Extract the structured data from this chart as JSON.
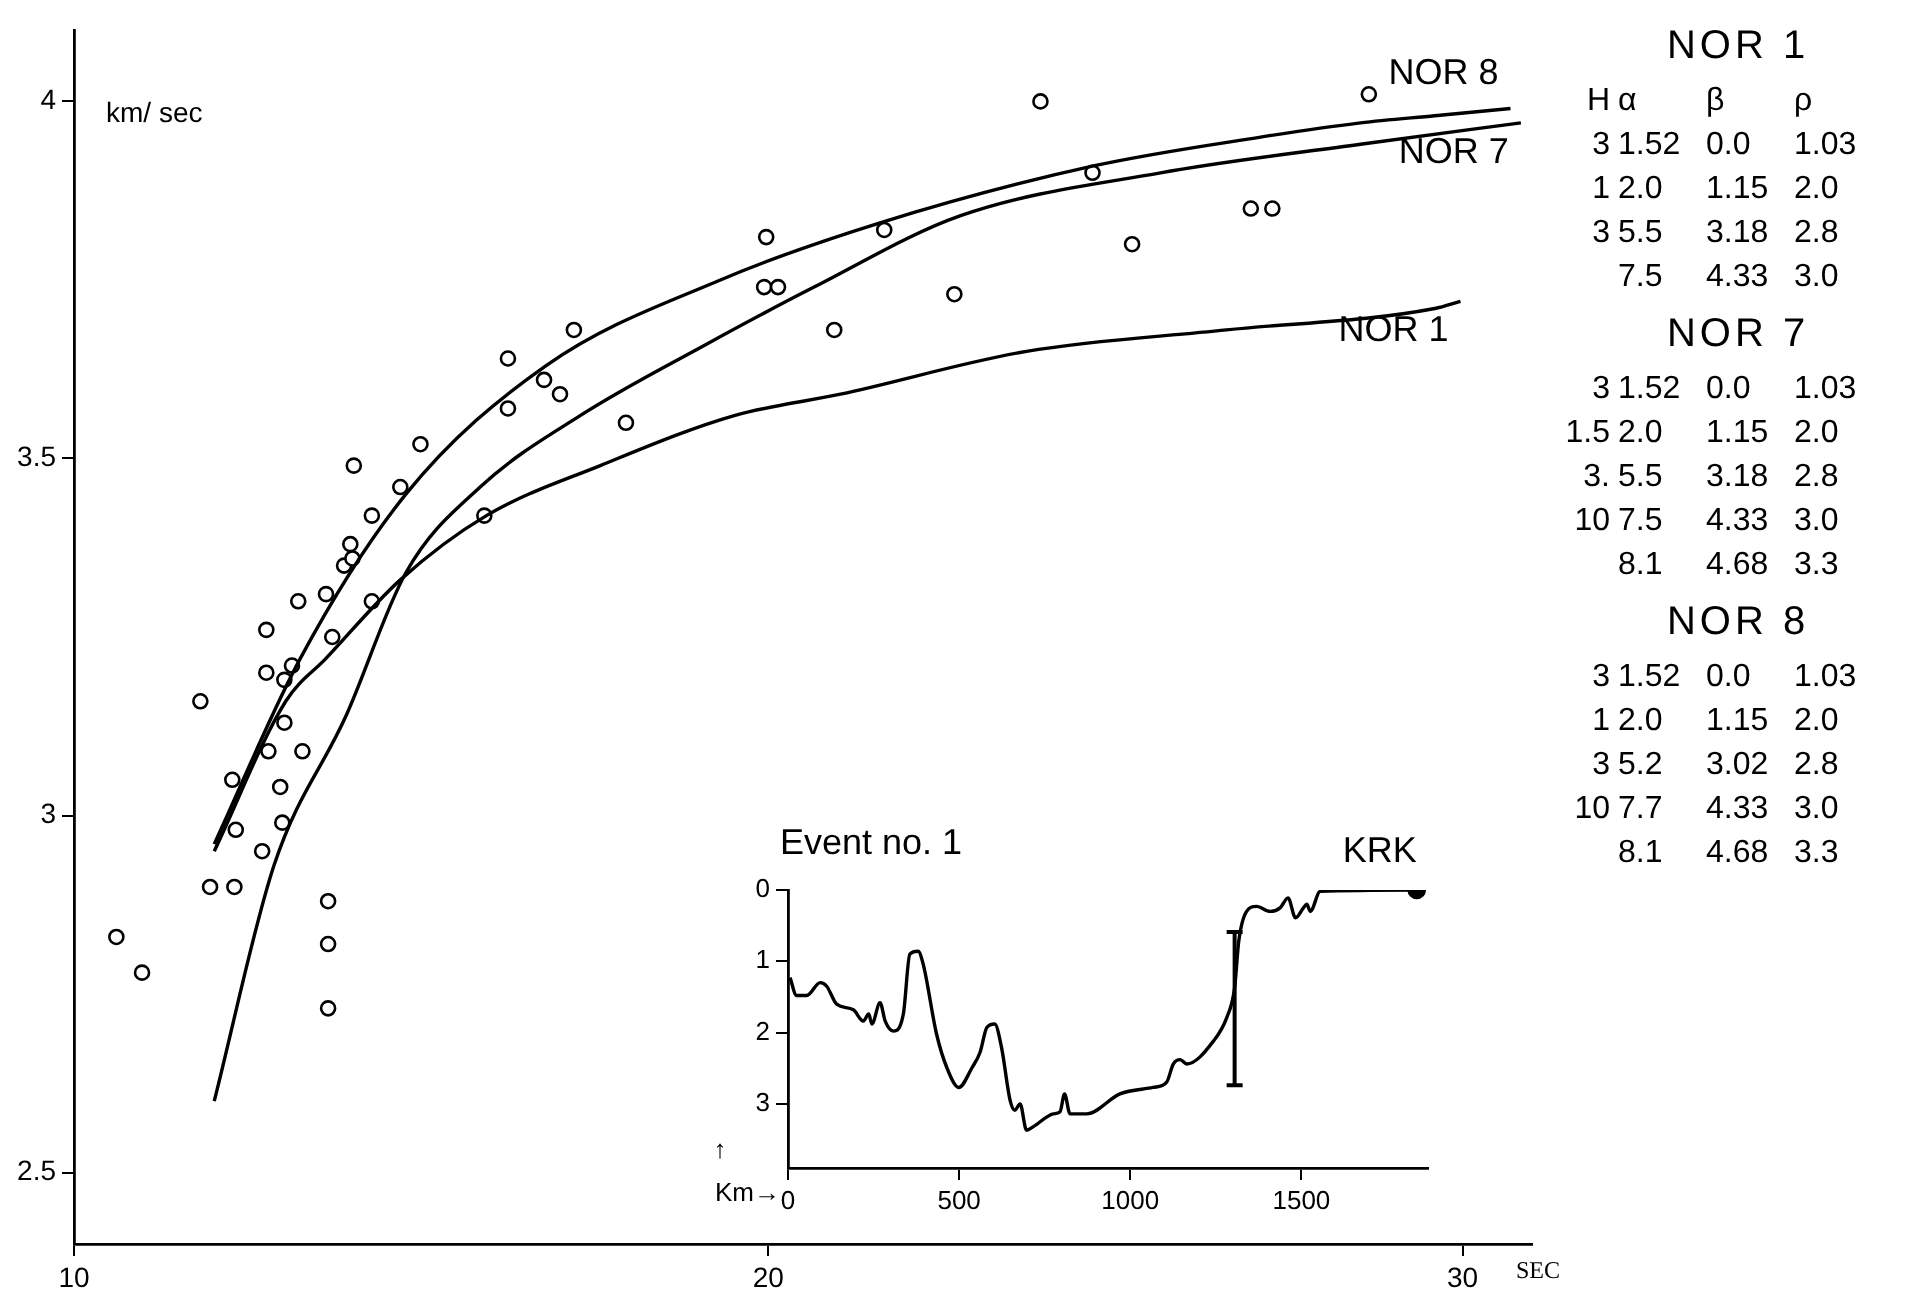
{
  "chart_data": [
    {
      "type": "line",
      "xlabel": "SEC",
      "ylabel": "km/ sec",
      "xlim": [
        10,
        31
      ],
      "ylim": [
        2.4,
        4.1
      ],
      "xticks": [
        10,
        20,
        30
      ],
      "yticks": [
        2.5,
        3,
        3.5,
        4
      ],
      "grid": false,
      "legend": false,
      "series": [
        {
          "name": "NOR 8",
          "type": "line",
          "color": "#000000",
          "x": [
            12.02,
            13.26,
            14.78,
            16.8,
            19.31,
            21.61,
            24.7,
            27.09,
            28.53,
            29.6,
            30.69
          ],
          "values": [
            2.96,
            3.22,
            3.45,
            3.63,
            3.75,
            3.83,
            3.91,
            3.95,
            3.97,
            3.98,
            3.99
          ]
        },
        {
          "name": "NOR 7",
          "type": "line",
          "color": "#000000",
          "x": [
            12.02,
            12.88,
            13.92,
            14.78,
            15.85,
            17.29,
            19.11,
            20.66,
            22.77,
            25.65,
            28.53,
            30.84
          ],
          "values": [
            2.6,
            2.93,
            3.14,
            3.34,
            3.46,
            3.56,
            3.66,
            3.74,
            3.84,
            3.9,
            3.94,
            3.97
          ]
        },
        {
          "name": "NOR 1",
          "type": "line",
          "color": "#000000",
          "x": [
            12.02,
            13.05,
            13.63,
            14.7,
            15.94,
            17.58,
            19.51,
            21.04,
            23.72,
            26.6,
            29.6,
            29.97
          ],
          "values": [
            2.95,
            3.16,
            3.22,
            3.33,
            3.42,
            3.49,
            3.56,
            3.59,
            3.65,
            3.68,
            3.71,
            3.72
          ]
        },
        {
          "type": "scatter",
          "marker": "circle",
          "color": "#000000",
          "x": [
            10.61,
            10.98,
            11.82,
            11.96,
            12.31,
            12.28,
            12.33,
            12.71,
            12.8,
            12.77,
            12.77,
            12.97,
            13.0,
            13.03,
            13.03,
            13.14,
            13.23,
            13.29,
            13.66,
            13.66,
            13.66,
            13.63,
            13.72,
            13.89,
            13.98,
            14.01,
            14.29,
            14.29,
            14.03,
            14.7,
            14.99,
            15.91,
            16.25,
            16.25,
            16.77,
            17.0,
            17.2,
            17.95,
            19.94,
            20.14,
            19.97,
            20.95,
            21.67,
            22.68,
            23.92,
            24.67,
            25.24,
            26.95,
            27.26,
            28.65
          ],
          "values": [
            2.83,
            2.78,
            3.16,
            2.9,
            2.9,
            3.05,
            2.98,
            2.95,
            3.09,
            3.2,
            3.26,
            3.04,
            2.99,
            3.13,
            3.19,
            3.21,
            3.3,
            3.09,
            2.88,
            2.82,
            2.73,
            3.31,
            3.25,
            3.35,
            3.38,
            3.36,
            3.3,
            3.42,
            3.49,
            3.46,
            3.52,
            3.42,
            3.57,
            3.64,
            3.61,
            3.59,
            3.68,
            3.55,
            3.74,
            3.74,
            3.81,
            3.68,
            3.82,
            3.73,
            4.0,
            3.9,
            3.8,
            3.85,
            3.85,
            4.01
          ]
        }
      ]
    },
    {
      "type": "line",
      "title": "Event no. 1",
      "xlabel": "Km→",
      "ylabel": "↑",
      "xlim": [
        0,
        1870
      ],
      "ylim": [
        3.9,
        0
      ],
      "xticks": [
        0,
        500,
        1000,
        1500
      ],
      "yticks": [
        0,
        1,
        2,
        3
      ],
      "grid": false,
      "legend": false,
      "annotations": [
        {
          "text": "KRK",
          "x": 1837,
          "y": 0
        }
      ],
      "series": [
        {
          "type": "line",
          "color": "#000000",
          "x": [
            6,
            25,
            55,
            94,
            113,
            142,
            191,
            220,
            236,
            245,
            269,
            284,
            308,
            337,
            356,
            380,
            395,
            434,
            464,
            499,
            538,
            561,
            581,
            604,
            624,
            649,
            663,
            678,
            697,
            717,
            775,
            795,
            808,
            824,
            873,
            970,
            1067,
            1106,
            1126,
            1146,
            1165,
            1243,
            1282,
            1305,
            1317,
            1340,
            1369,
            1409,
            1438,
            1461,
            1483,
            1506,
            1516,
            1526,
            1555,
            1837
          ],
          "values": [
            1.23,
            1.48,
            1.48,
            1.3,
            1.35,
            1.6,
            1.68,
            1.84,
            1.74,
            1.88,
            1.58,
            1.84,
            1.98,
            1.74,
            0.9,
            0.86,
            1.04,
            2.02,
            2.49,
            2.77,
            2.49,
            2.28,
            1.93,
            1.88,
            2.21,
            2.95,
            3.09,
            3.0,
            3.37,
            3.32,
            3.14,
            3.11,
            2.86,
            3.14,
            3.14,
            2.86,
            2.77,
            2.7,
            2.44,
            2.38,
            2.44,
            2.12,
            1.79,
            1.37,
            0.72,
            0.3,
            0.23,
            0.3,
            0.25,
            0.11,
            0.39,
            0.25,
            0.2,
            0.3,
            0.02,
            0
          ],
          "errors": [
            null,
            null,
            null,
            null,
            null,
            null,
            null,
            null,
            null,
            null,
            null,
            null,
            null,
            null,
            null,
            null,
            null,
            null,
            null,
            null,
            null,
            null,
            null,
            null,
            null,
            null,
            null,
            null,
            null,
            null,
            null,
            null,
            null,
            null,
            null,
            null,
            null,
            null,
            null,
            null,
            null,
            null,
            null,
            [
              0.59,
              2.74
            ],
            null,
            null,
            null,
            null,
            null,
            null,
            null,
            null,
            null,
            null,
            null,
            null
          ]
        },
        {
          "type": "scatter",
          "marker": "circle",
          "color": "#000000",
          "x": [
            1837
          ],
          "values": [
            0
          ]
        }
      ]
    },
    {
      "type": "other",
      "annotations": [
        "NOR 1",
        "H\tα\tβ\tρ",
        "3\t1.52\t0.0\t1.03",
        "1\t2.0\t1.15\t2.0",
        "3\t5.5\t3.18\t2.8",
        "\t7.5\t4.33\t3.0",
        "NOR 7",
        "3\t1.52\t0.0\t1.03",
        "1.5\t2.0\t1.15\t2.0",
        "3.\t5.5\t3.18\t2.8",
        "10\t7.5\t4.33\t3.0",
        "\t8.1\t4.68\t3.3",
        "NOR 8",
        "3\t1.52\t0.0\t1.03",
        "1\t2.0\t1.15\t2.0",
        "3\t5.2\t3.02\t2.8",
        "10\t7.7\t4.33\t3.0",
        "\t8.1\t4.68\t3.3"
      ]
    }
  ]
}
